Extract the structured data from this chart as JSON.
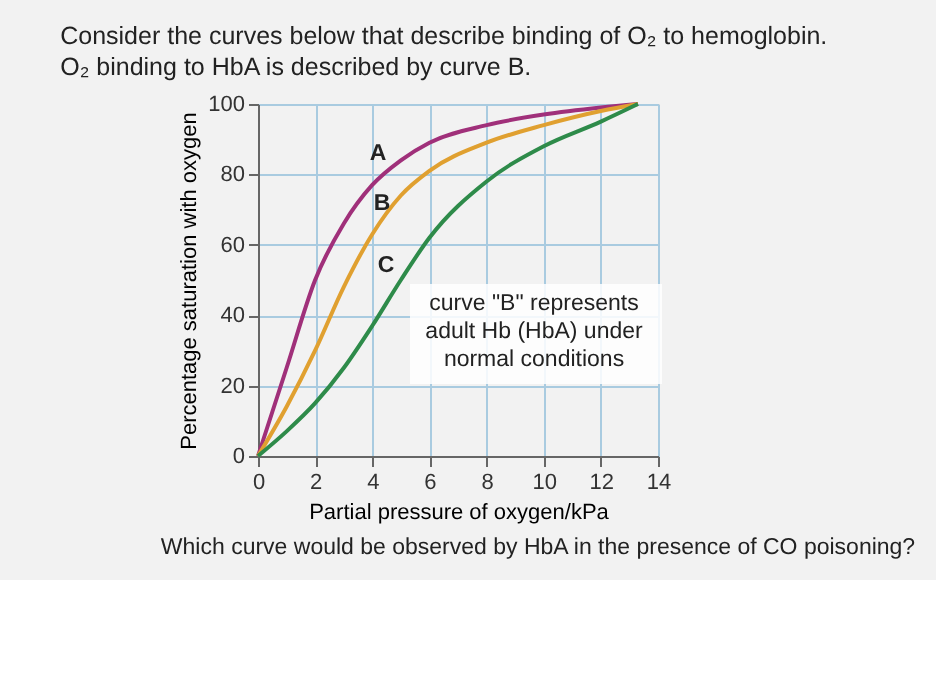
{
  "chart_data": {
    "type": "line",
    "title": "Consider the curves below that describe binding of O₂ to hemoglobin.",
    "subtitle": "O₂ binding to HbA is described by curve B.",
    "xlabel": "Partial pressure of oxygen/kPa",
    "ylabel": "Percentage saturation with oxygen",
    "xlim": [
      0,
      14
    ],
    "ylim": [
      0,
      100
    ],
    "xticks": [
      0,
      2,
      4,
      6,
      8,
      10,
      12,
      14
    ],
    "yticks": [
      0,
      20,
      40,
      60,
      80,
      100
    ],
    "grid": true,
    "marker": "none",
    "line_style": "solid",
    "series": [
      {
        "color": "#a0307a",
        "x": [
          0,
          1,
          2,
          3,
          4,
          5,
          6,
          8,
          10,
          12,
          13.3
        ],
        "values": [
          0,
          25,
          50,
          66,
          77,
          84,
          89,
          94,
          97,
          99,
          100
        ]
      },
      {
        "color": "#e0a030",
        "x": [
          0,
          1,
          2,
          3,
          4,
          5,
          6,
          8,
          10,
          12,
          13.3
        ],
        "values": [
          0,
          14,
          30,
          48,
          63,
          74,
          81,
          89,
          94,
          98,
          100
        ]
      },
      {
        "color": "#2e8b4a",
        "x": [
          0,
          1,
          2,
          3,
          4,
          5,
          6,
          8,
          10,
          12,
          13.3
        ],
        "values": [
          0,
          7,
          15,
          25,
          37,
          50,
          62,
          78,
          88,
          95,
          100
        ]
      }
    ],
    "annotations": [
      "A",
      "B",
      "C",
      "curve \"B\" represents\nadult Hb (HbA) under\nnormal conditions",
      "Which curve would be observed by HbA in the presence of CO poisoning?"
    ]
  }
}
